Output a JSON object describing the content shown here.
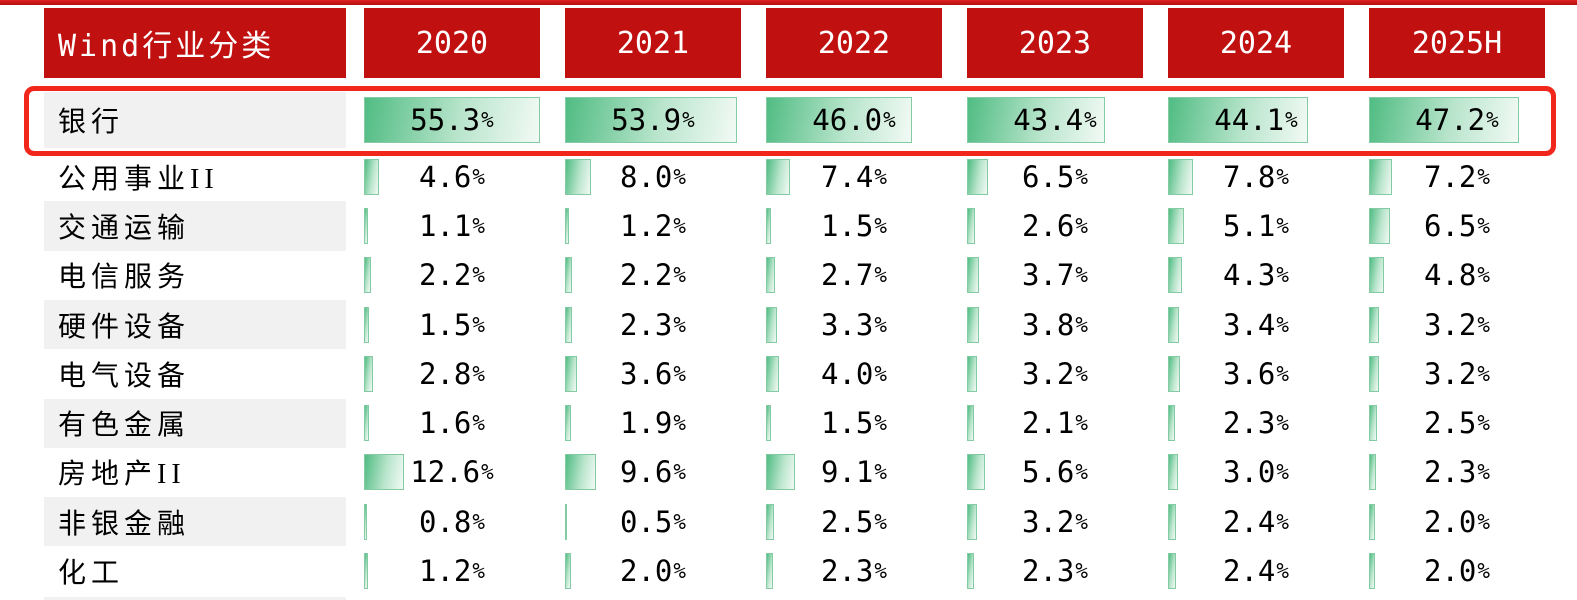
{
  "colors": {
    "header_bg": "#C01010",
    "header_text": "#FFFFFF",
    "top_line": "#C41212",
    "highlight_border": "#F2271C",
    "row_alt_bg": "#F1F1F1",
    "bar_gradient_start": "#50BC83",
    "bar_gradient_end": "#F2FAF5",
    "bar_border": "#84CAA3",
    "value_text": "#000000"
  },
  "chart_data": {
    "type": "table",
    "title": "",
    "columns": [
      "Wind行业分类",
      "2020",
      "2021",
      "2022",
      "2023",
      "2024",
      "2025H"
    ],
    "unit": "%",
    "value_decimals": 1,
    "bar_scale_max": 55.3,
    "highlight_row": "银行",
    "legend_position": "none",
    "grid": false,
    "rows": [
      {
        "label": "银行",
        "values": [
          55.3,
          53.9,
          46.0,
          43.4,
          44.1,
          47.2
        ],
        "highlighted": true
      },
      {
        "label": "公用事业II",
        "values": [
          4.6,
          8.0,
          7.4,
          6.5,
          7.8,
          7.2
        ],
        "highlighted": false
      },
      {
        "label": "交通运输",
        "values": [
          1.1,
          1.2,
          1.5,
          2.6,
          5.1,
          6.5
        ],
        "highlighted": false
      },
      {
        "label": "电信服务",
        "values": [
          2.2,
          2.2,
          2.7,
          3.7,
          4.3,
          4.8
        ],
        "highlighted": false
      },
      {
        "label": "硬件设备",
        "values": [
          1.5,
          2.3,
          3.3,
          3.8,
          3.4,
          3.2
        ],
        "highlighted": false
      },
      {
        "label": "电气设备",
        "values": [
          2.8,
          3.6,
          4.0,
          3.2,
          3.6,
          3.2
        ],
        "highlighted": false
      },
      {
        "label": "有色金属",
        "values": [
          1.6,
          1.9,
          1.5,
          2.1,
          2.3,
          2.5
        ],
        "highlighted": false
      },
      {
        "label": "房地产II",
        "values": [
          12.6,
          9.6,
          9.1,
          5.6,
          3.0,
          2.3
        ],
        "highlighted": false
      },
      {
        "label": "非银金融",
        "values": [
          0.8,
          0.5,
          2.5,
          3.2,
          2.4,
          2.0
        ],
        "highlighted": false
      },
      {
        "label": "化工",
        "values": [
          1.2,
          2.0,
          2.3,
          2.3,
          2.4,
          2.0
        ],
        "highlighted": false
      }
    ]
  }
}
